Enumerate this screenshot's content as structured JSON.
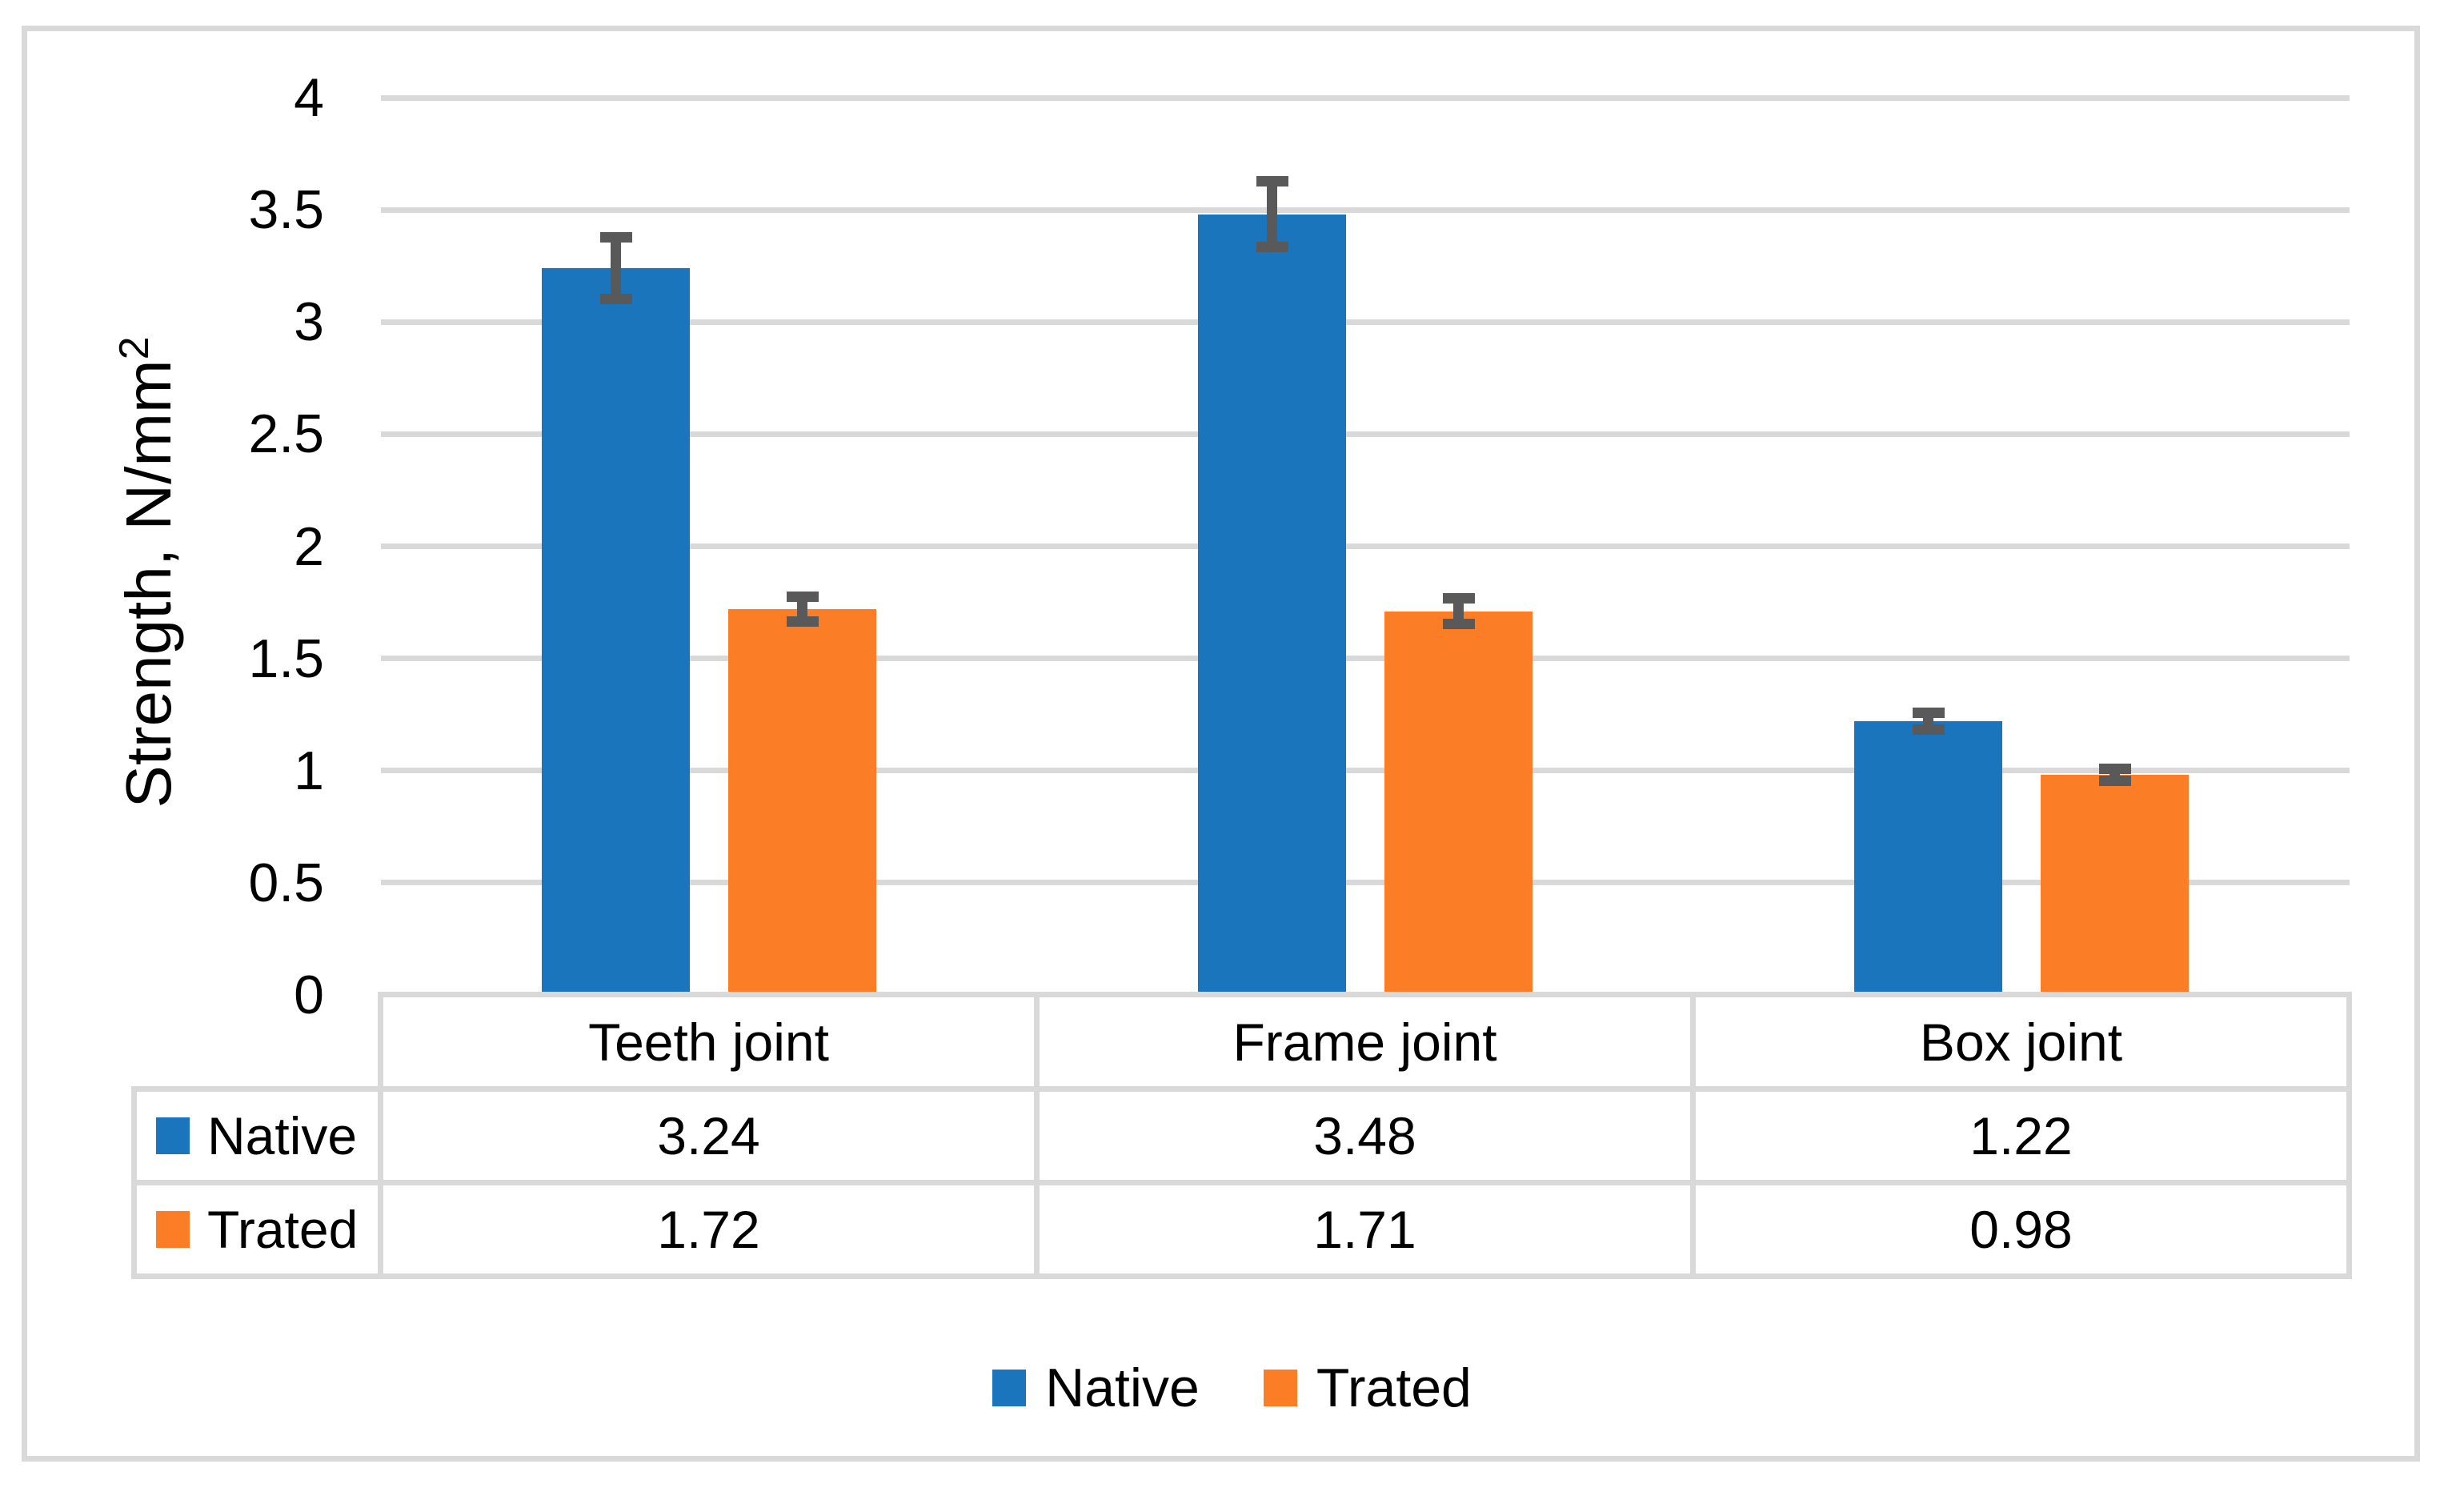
{
  "figure": {
    "border_color": "#D9D9D9",
    "background": "#FFFFFF"
  },
  "chart_data": {
    "type": "bar",
    "categories": [
      "Teeth joint",
      "Frame joint",
      "Box joint"
    ],
    "series": [
      {
        "name": "Native",
        "color": "#1B75BC",
        "values": [
          3.24,
          3.48,
          1.22
        ],
        "errors": [
          0.16,
          0.17,
          0.06
        ]
      },
      {
        "name": "Trated",
        "color": "#FB7D25",
        "values": [
          1.72,
          1.71,
          0.98
        ],
        "errors": [
          0.08,
          0.08,
          0.05
        ]
      }
    ],
    "ylabel": {
      "text": "Strength, N/mm",
      "sup": "2"
    },
    "ylim": [
      0,
      4
    ],
    "ytick_step": 0.5,
    "yticks": [
      "4",
      "3.5",
      "3",
      "2.5",
      "2",
      "1.5",
      "1",
      "0.5",
      "0"
    ],
    "grid": true,
    "gridline_color": "#D9D9D9",
    "error_bar_color": "#595959",
    "legend_position": "bottom",
    "data_table": {
      "row_labels": [
        "Native",
        "Trated"
      ],
      "rows": [
        [
          "3.24",
          "3.48",
          "1.22"
        ],
        [
          "1.72",
          "1.71",
          "0.98"
        ]
      ]
    }
  },
  "legend": {
    "items": [
      {
        "label": "Native",
        "color": "#1B75BC"
      },
      {
        "label": "Trated",
        "color": "#FB7D25"
      }
    ]
  }
}
